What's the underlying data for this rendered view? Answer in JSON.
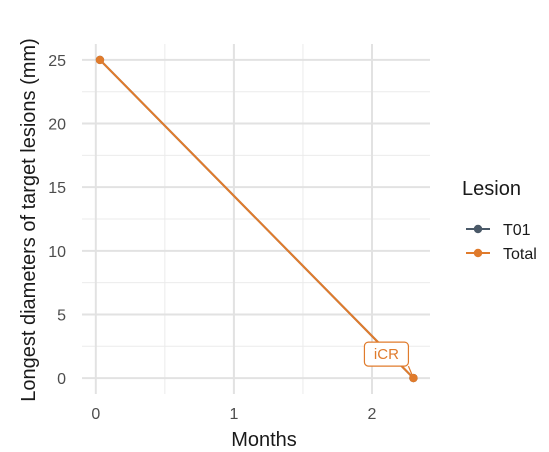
{
  "chart_data": {
    "type": "line",
    "title": "",
    "xlabel": "Months",
    "ylabel": "Longest diameters of target lesions (mm)",
    "xlim": [
      -0.1,
      2.42
    ],
    "ylim": [
      -1.25,
      26.25
    ],
    "x_ticks": [
      0,
      1,
      2
    ],
    "x_tick_labels": [
      "0",
      "1",
      "2"
    ],
    "y_ticks": [
      0,
      5,
      10,
      15,
      20,
      25
    ],
    "y_tick_labels": [
      "0",
      "5",
      "10",
      "15",
      "20",
      "25"
    ],
    "grid": true,
    "legend": {
      "title": "Lesion",
      "position": "right",
      "entries": [
        {
          "label": "T01",
          "color": "#4a5968"
        },
        {
          "label": "Total",
          "color": "#e07b2c"
        }
      ]
    },
    "series": [
      {
        "name": "T01",
        "color": "#4a5968",
        "x": [
          0.03,
          2.3
        ],
        "y": [
          25,
          0
        ]
      },
      {
        "name": "Total",
        "color": "#e07b2c",
        "x": [
          0.03,
          2.3
        ],
        "y": [
          25,
          0
        ]
      }
    ],
    "annotations": [
      {
        "text": "iCR",
        "x": 2.3,
        "y": 0,
        "color": "#e07b2c"
      }
    ]
  }
}
